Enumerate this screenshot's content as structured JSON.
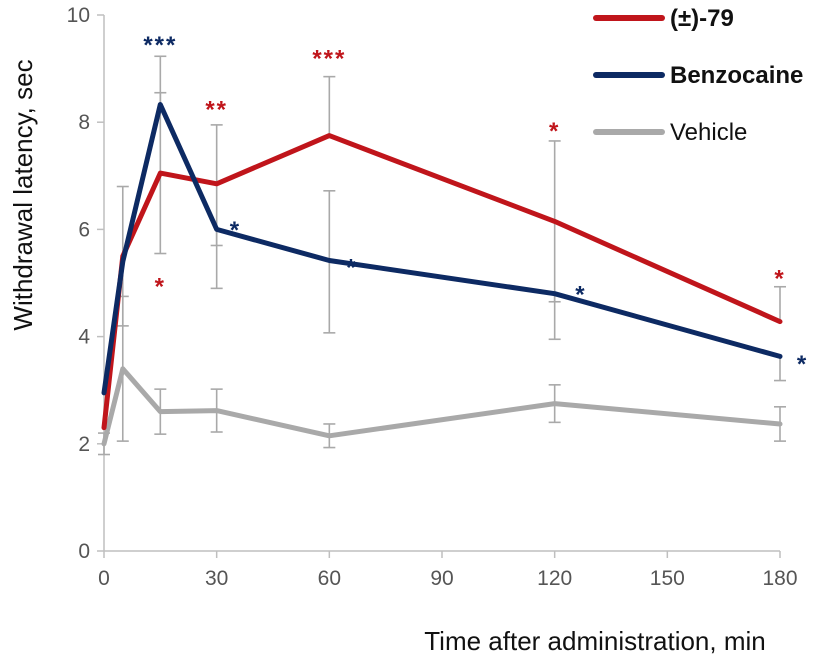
{
  "chart_data": {
    "type": "line",
    "xlabel": "Time after administration, min",
    "ylabel": "Withdrawal latency, sec",
    "xlim": [
      0,
      180
    ],
    "ylim": [
      0,
      10
    ],
    "xticks": [
      "0",
      "30",
      "60",
      "90",
      "120",
      "150",
      "180"
    ],
    "yticks": [
      "0",
      "2",
      "4",
      "6",
      "8",
      "10"
    ],
    "grid": false,
    "legend_position": "top-right",
    "series": [
      {
        "name": "(±)-79",
        "color": "#c0151b",
        "legend_bold": true,
        "x": [
          0,
          5,
          15,
          30,
          60,
          120,
          180
        ],
        "y": [
          2.3,
          5.5,
          7.05,
          6.85,
          7.75,
          6.15,
          4.28
        ],
        "err_low": [
          null,
          1.3,
          1.5,
          1.15,
          null,
          1.5,
          null
        ],
        "err_high": [
          null,
          1.3,
          1.5,
          1.1,
          1.1,
          1.5,
          0.65
        ]
      },
      {
        "name": "Benzocaine",
        "color": "#0d2a63",
        "legend_bold": true,
        "x": [
          0,
          5,
          15,
          30,
          60,
          120,
          180
        ],
        "y": [
          2.95,
          5.4,
          8.33,
          6.0,
          5.42,
          4.8,
          3.63
        ],
        "err_low": [
          null,
          null,
          null,
          1.1,
          1.35,
          0.85,
          0.45
        ],
        "err_high": [
          null,
          null,
          0.9,
          null,
          1.3,
          null,
          null
        ]
      },
      {
        "name": "Vehicle",
        "color": "#a9a9a9",
        "legend_bold": false,
        "x": [
          0,
          5,
          15,
          30,
          60,
          120,
          180
        ],
        "y": [
          2.0,
          3.4,
          2.6,
          2.62,
          2.15,
          2.75,
          2.37
        ],
        "err_low": [
          0.2,
          1.35,
          0.42,
          0.4,
          0.22,
          0.35,
          0.32
        ],
        "err_high": [
          0.2,
          1.35,
          0.42,
          0.4,
          0.22,
          0.35,
          0.32
        ]
      }
    ],
    "annotations": [
      {
        "text": "***",
        "x": 15,
        "y": 9.55,
        "color": "#0d2a63"
      },
      {
        "text": "**",
        "x": 30,
        "y": 8.35,
        "color": "#c0151b"
      },
      {
        "text": "*",
        "x": 15,
        "y": 5.05,
        "color": "#c0151b"
      },
      {
        "text": "*",
        "x": 35,
        "y": 6.1,
        "color": "#0d2a63"
      },
      {
        "text": "***",
        "x": 60,
        "y": 9.3,
        "color": "#c0151b"
      },
      {
        "text": "*",
        "x": 66,
        "y": 5.4,
        "color": "#0d2a63"
      },
      {
        "text": "*",
        "x": 120,
        "y": 7.95,
        "color": "#c0151b"
      },
      {
        "text": "*",
        "x": 127,
        "y": 4.9,
        "color": "#0d2a63"
      },
      {
        "text": "*",
        "x": 180,
        "y": 5.2,
        "color": "#c0151b"
      },
      {
        "text": "*",
        "x": 186,
        "y": 3.6,
        "color": "#0d2a63"
      }
    ]
  }
}
